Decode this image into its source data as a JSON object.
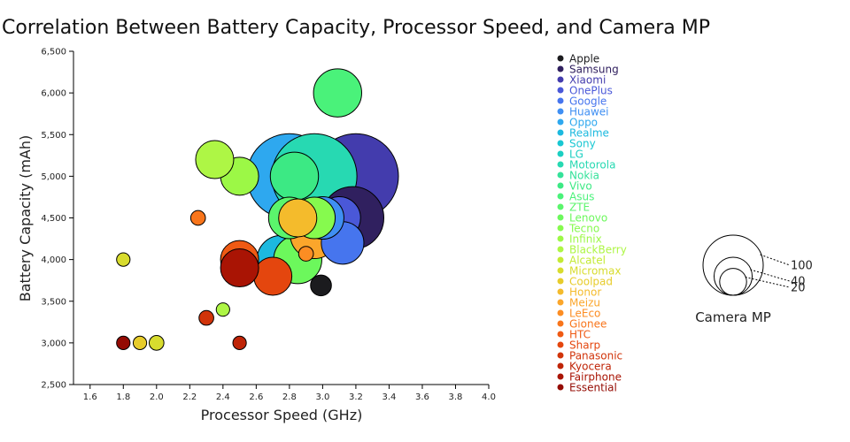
{
  "chart_data": {
    "type": "scatter",
    "title": "Correlation Between Battery Capacity, Processor Speed, and Camera MP",
    "xlabel": "Processor Speed (GHz)",
    "ylabel": "Battery Capacity (mAh)",
    "xlim": [
      1.5,
      4.0
    ],
    "ylim": [
      2500,
      6500
    ],
    "xticks": [
      "1.6",
      "1.8",
      "2.0",
      "2.2",
      "2.4",
      "2.6",
      "2.8",
      "3.0",
      "3.2",
      "3.4",
      "3.6",
      "3.8",
      "4.0"
    ],
    "yticks": [
      "2,500",
      "3,000",
      "3,500",
      "4,000",
      "4,500",
      "5,000",
      "5,500",
      "6,000",
      "6,500"
    ],
    "grid": false,
    "legend_position": "right",
    "size_legend": {
      "title": "Camera MP",
      "ticks": [
        "100",
        "40",
        "20"
      ],
      "values": [
        100,
        40,
        20
      ]
    },
    "series": [
      {
        "name": "Apple",
        "color": "#1b1b1e",
        "points": [
          {
            "x": 2.99,
            "y": 3690,
            "mp": 12
          }
        ]
      },
      {
        "name": "Samsung",
        "color": "#30205f",
        "points": [
          {
            "x": 3.18,
            "y": 4500,
            "mp": 108
          }
        ]
      },
      {
        "name": "Xiaomi",
        "color": "#433cad",
        "points": [
          {
            "x": 3.2,
            "y": 5000,
            "mp": 200
          }
        ]
      },
      {
        "name": "OnePlus",
        "color": "#4a58d8",
        "points": [
          {
            "x": 3.1,
            "y": 4500,
            "mp": 50
          }
        ]
      },
      {
        "name": "Google",
        "color": "#4675ee",
        "points": [
          {
            "x": 3.12,
            "y": 4200,
            "mp": 50
          }
        ]
      },
      {
        "name": "Huawei",
        "color": "#3f8ff3",
        "points": [
          {
            "x": 3.0,
            "y": 4500,
            "mp": 50
          }
        ]
      },
      {
        "name": "Oppo",
        "color": "#2ea8ef",
        "points": [
          {
            "x": 2.8,
            "y": 5000,
            "mp": 200
          }
        ]
      },
      {
        "name": "Realme",
        "color": "#1cb9df",
        "points": [
          {
            "x": 2.75,
            "y": 4000,
            "mp": 64
          }
        ]
      },
      {
        "name": "Sony",
        "color": "#18c7d2",
        "points": []
      },
      {
        "name": "LG",
        "color": "#1bcfc2",
        "points": []
      },
      {
        "name": "Motorola",
        "color": "#27d9b2",
        "points": [
          {
            "x": 2.95,
            "y": 5000,
            "mp": 200
          }
        ]
      },
      {
        "name": "Nokia",
        "color": "#35e29a",
        "points": []
      },
      {
        "name": "Vivo",
        "color": "#3ce984",
        "points": [
          {
            "x": 2.83,
            "y": 5000,
            "mp": 64
          }
        ]
      },
      {
        "name": "Asus",
        "color": "#4af27a",
        "points": [
          {
            "x": 3.09,
            "y": 6000,
            "mp": 64
          }
        ]
      },
      {
        "name": "ZTE",
        "color": "#5bf56c",
        "points": [
          {
            "x": 2.8,
            "y": 4500,
            "mp": 48
          }
        ]
      },
      {
        "name": "Lenovo",
        "color": "#6cf85c",
        "points": [
          {
            "x": 2.85,
            "y": 4000,
            "mp": 64
          }
        ]
      },
      {
        "name": "Tecno",
        "color": "#86fa4e",
        "points": [
          {
            "x": 2.95,
            "y": 4500,
            "mp": 48
          }
        ]
      },
      {
        "name": "Infinix",
        "color": "#9cf846",
        "points": [
          {
            "x": 2.5,
            "y": 5000,
            "mp": 40
          }
        ]
      },
      {
        "name": "BlackBerry",
        "color": "#aef645",
        "points": [
          {
            "x": 2.35,
            "y": 5200,
            "mp": 40
          },
          {
            "x": 2.4,
            "y": 3400,
            "mp": 5
          }
        ]
      },
      {
        "name": "Alcatel",
        "color": "#c4ea35",
        "points": []
      },
      {
        "name": "Micromax",
        "color": "#d8dc2e",
        "points": [
          {
            "x": 1.8,
            "y": 4000,
            "mp": 5
          },
          {
            "x": 2.0,
            "y": 3000,
            "mp": 6
          }
        ]
      },
      {
        "name": "Coolpad",
        "color": "#e7cc2b",
        "points": [
          {
            "x": 1.9,
            "y": 3000,
            "mp": 5
          }
        ]
      },
      {
        "name": "Honor",
        "color": "#f4bb2c",
        "points": [
          {
            "x": 2.85,
            "y": 4500,
            "mp": 40
          }
        ]
      },
      {
        "name": "Meizu",
        "color": "#fba62b",
        "points": [
          {
            "x": 2.95,
            "y": 4300,
            "mp": 64
          }
        ]
      },
      {
        "name": "LeEco",
        "color": "#fc8d23",
        "points": [
          {
            "x": 2.9,
            "y": 4070,
            "mp": 6
          }
        ]
      },
      {
        "name": "Gionee",
        "color": "#f8751b",
        "points": [
          {
            "x": 2.25,
            "y": 4500,
            "mp": 6
          }
        ]
      },
      {
        "name": "HTC",
        "color": "#ef5a14",
        "points": [
          {
            "x": 2.5,
            "y": 4000,
            "mp": 40
          }
        ]
      },
      {
        "name": "Sharp",
        "color": "#e4460e",
        "points": [
          {
            "x": 2.7,
            "y": 3800,
            "mp": 40
          }
        ]
      },
      {
        "name": "Panasonic",
        "color": "#d1340a",
        "points": [
          {
            "x": 2.3,
            "y": 3300,
            "mp": 6
          }
        ]
      },
      {
        "name": "Kyocera",
        "color": "#bf2407",
        "points": [
          {
            "x": 2.5,
            "y": 3000,
            "mp": 5
          }
        ]
      },
      {
        "name": "Fairphone",
        "color": "#a91404",
        "points": [
          {
            "x": 2.5,
            "y": 3900,
            "mp": 40
          }
        ]
      },
      {
        "name": "Essential",
        "color": "#940b03",
        "points": [
          {
            "x": 1.8,
            "y": 3000,
            "mp": 5
          }
        ]
      }
    ]
  }
}
